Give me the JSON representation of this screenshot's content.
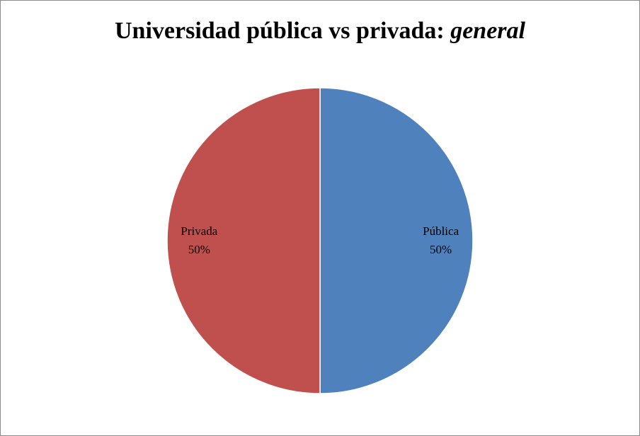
{
  "chart_data": {
    "type": "pie",
    "title": "Universidad pública vs privada:",
    "title_italic": "general",
    "categories": [
      "Pública",
      "Privada"
    ],
    "values": [
      50,
      50
    ],
    "value_labels": [
      "50%",
      "50%"
    ],
    "colors": [
      "#4f81bd",
      "#c0504d"
    ]
  }
}
